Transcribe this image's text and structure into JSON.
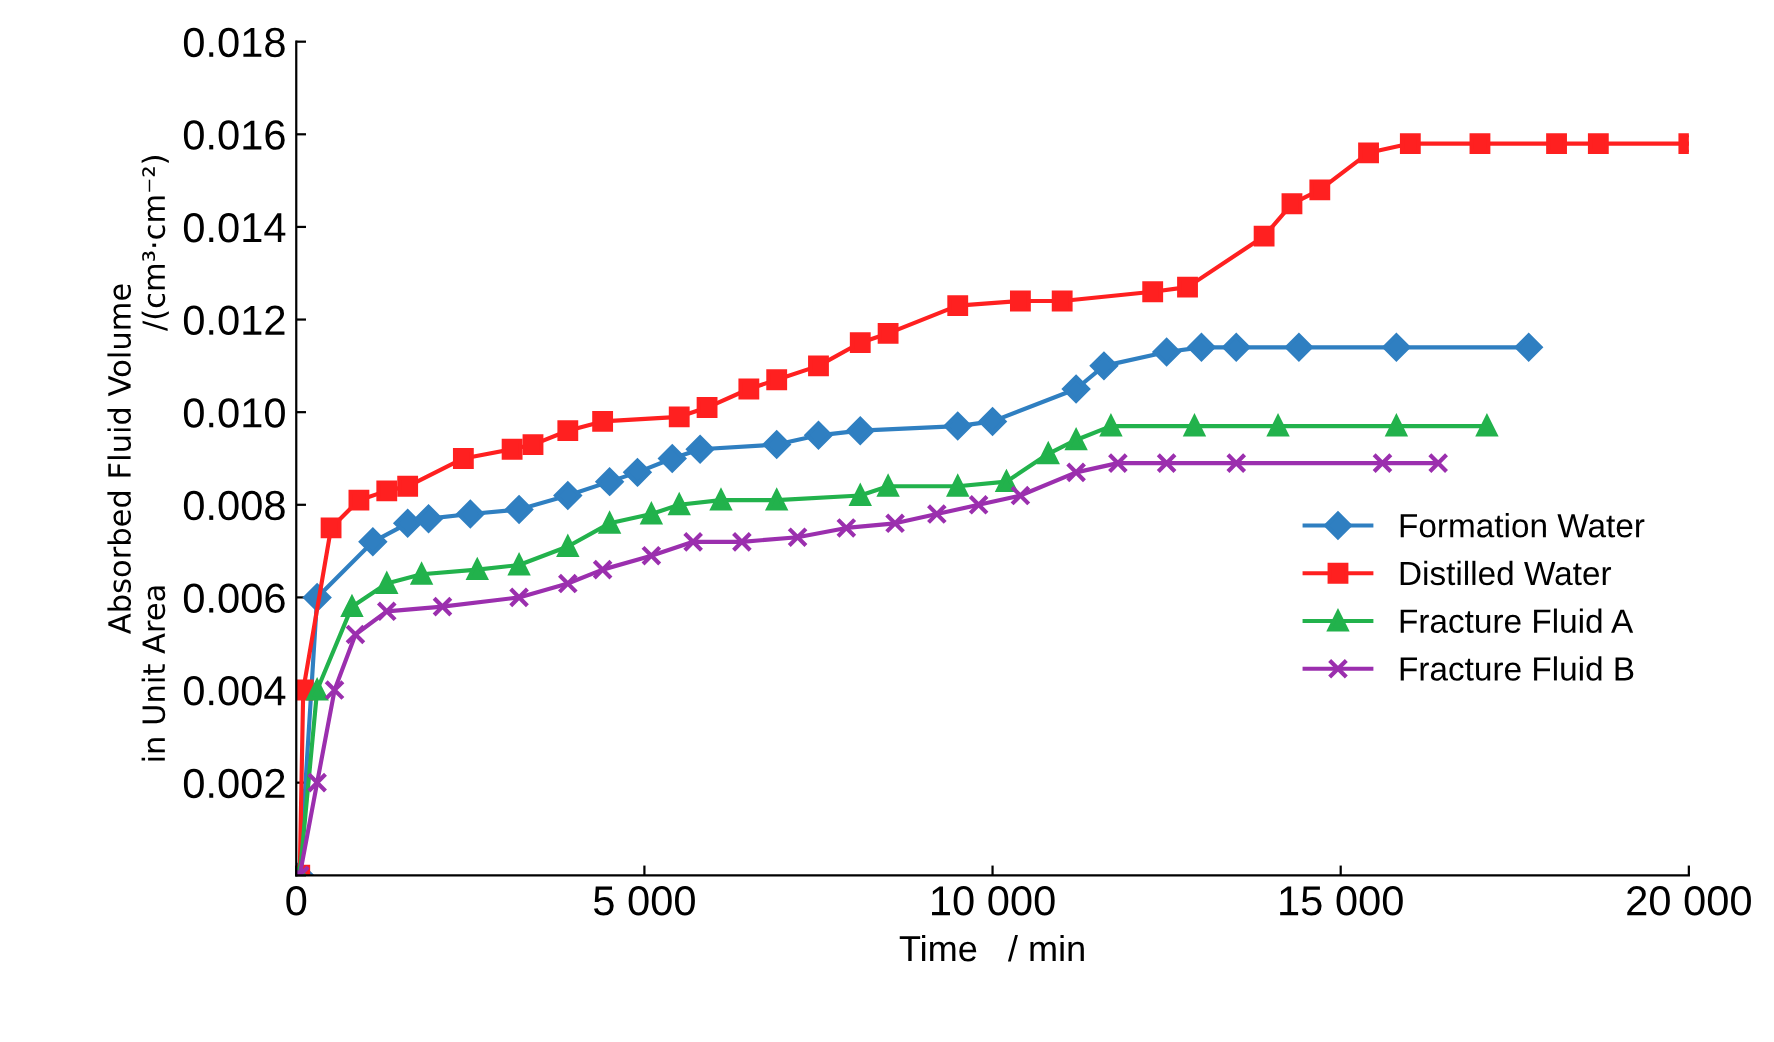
{
  "chart_data": {
    "type": "line",
    "xlabel": "Time   / min",
    "ylabel": "Absorbed Fluid Volume\nin Unit Area                          /(cm³·cm⁻²)",
    "xlim": [
      0,
      20000
    ],
    "ylim": [
      0,
      0.018
    ],
    "xticks": [
      0,
      {
        "value": 5000,
        "label": "5 000"
      },
      {
        "value": 10000,
        "label": "10 000"
      },
      {
        "value": 15000,
        "label": "15 000"
      },
      {
        "value": 20000,
        "label": "20 000"
      }
    ],
    "yticks": [
      {
        "value": 0,
        "label": null
      },
      {
        "value": 0.002,
        "label": "0.002"
      },
      {
        "value": 0.004,
        "label": "0.004"
      },
      {
        "value": 0.006,
        "label": "0.006"
      },
      {
        "value": 0.008,
        "label": "0.008"
      },
      {
        "value": 0.01,
        "label": "0.010"
      },
      {
        "value": 0.012,
        "label": "0.012"
      },
      {
        "value": 0.014,
        "label": "0.014"
      },
      {
        "value": 0.016,
        "label": "0.016"
      },
      {
        "value": 0.018,
        "label": "0.018"
      }
    ],
    "grid": false,
    "legend": "right",
    "series": [
      {
        "name": "Formation Water",
        "color": "#2f7fc1",
        "marker": "diamond",
        "x": [
          50,
          300,
          1100,
          1600,
          1900,
          2500,
          3200,
          3900,
          4500,
          4900,
          5400,
          5800,
          6900,
          7500,
          8100,
          9500,
          10000,
          11200,
          11600,
          12500,
          13000,
          13500,
          14400,
          15800,
          17700
        ],
        "values": [
          0,
          0.006,
          0.0072,
          0.0076,
          0.0077,
          0.0078,
          0.0079,
          0.0082,
          0.0085,
          0.0087,
          0.009,
          0.0092,
          0.0093,
          0.0095,
          0.0096,
          0.0097,
          0.0098,
          0.0105,
          0.011,
          0.0113,
          0.0114,
          0.0114,
          0.0114,
          0.0114,
          0.0114
        ]
      },
      {
        "name": "Distilled Water",
        "color": "#ff2020",
        "marker": "square",
        "x": [
          50,
          100,
          500,
          900,
          1300,
          1600,
          2400,
          3100,
          3400,
          3900,
          4400,
          5500,
          5900,
          6500,
          6900,
          7500,
          8100,
          8500,
          9500,
          10400,
          11000,
          12300,
          12800,
          13900,
          14300,
          14700,
          15400,
          16000,
          17000,
          18100,
          18700,
          20000
        ],
        "values": [
          0,
          0.004,
          0.0075,
          0.0081,
          0.0083,
          0.0084,
          0.009,
          0.0092,
          0.0093,
          0.0096,
          0.0098,
          0.0099,
          0.0101,
          0.0105,
          0.0107,
          0.011,
          0.0115,
          0.0117,
          0.0123,
          0.0124,
          0.0124,
          0.0126,
          0.0127,
          0.0138,
          0.0145,
          0.0148,
          0.0156,
          0.0158,
          0.0158,
          0.0158,
          0.0158,
          0.0158
        ]
      },
      {
        "name": "Fracture Fluid A",
        "color": "#22b24c",
        "marker": "triangle",
        "x": [
          50,
          300,
          800,
          1300,
          1800,
          2600,
          3200,
          3900,
          4500,
          5100,
          5500,
          6100,
          6900,
          8100,
          8500,
          9500,
          10200,
          10800,
          11200,
          11700,
          12900,
          14100,
          15800,
          17100
        ],
        "values": [
          0,
          0.004,
          0.0058,
          0.0063,
          0.0065,
          0.0066,
          0.0067,
          0.0071,
          0.0076,
          0.0078,
          0.008,
          0.0081,
          0.0081,
          0.0082,
          0.0084,
          0.0084,
          0.0085,
          0.0091,
          0.0094,
          0.0097,
          0.0097,
          0.0097,
          0.0097,
          0.0097
        ]
      },
      {
        "name": "Fracture Fluid B",
        "color": "#9b2fae",
        "marker": "cross",
        "x": [
          50,
          300,
          550,
          850,
          1300,
          2100,
          3200,
          3900,
          4400,
          5100,
          5700,
          6400,
          7200,
          7900,
          8600,
          9200,
          9800,
          10400,
          11200,
          11800,
          12500,
          13500,
          15600,
          16400
        ],
        "values": [
          0,
          0.002,
          0.004,
          0.0052,
          0.0057,
          0.0058,
          0.006,
          0.0063,
          0.0066,
          0.0069,
          0.0072,
          0.0072,
          0.0073,
          0.0075,
          0.0076,
          0.0078,
          0.008,
          0.0082,
          0.0087,
          0.0089,
          0.0089,
          0.0089,
          0.0089,
          0.0089
        ]
      }
    ]
  }
}
